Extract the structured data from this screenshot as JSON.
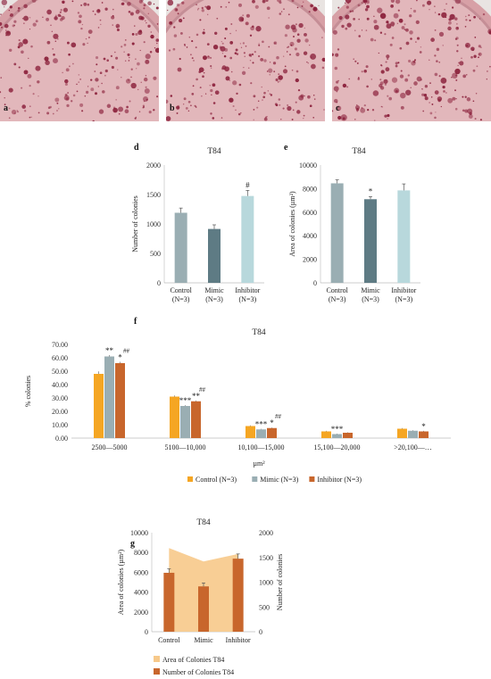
{
  "figure": {
    "photos": [
      {
        "letter": "a"
      },
      {
        "letter": "b"
      },
      {
        "letter": "c"
      }
    ],
    "colors": {
      "control": "#9aaeb3",
      "mimic": "#5e7b84",
      "inhibitor": "#b8d8dc",
      "orange_control": "#f5a623",
      "gray_mimic": "#9aaeb3",
      "brown_inhibitor": "#c8662c",
      "area_fill": "#f7c98a",
      "number_bar": "#c8662c",
      "colony": "#8a1f3a"
    }
  },
  "chart_data": [
    {
      "id": "d",
      "letter": "d",
      "type": "bar",
      "title": "T84",
      "ylabel": "Number of colonies",
      "categories": [
        "Control",
        "Mimic",
        "Inhibitor"
      ],
      "category_sub": [
        "(N=3)",
        "(N=3)",
        "(N=3)"
      ],
      "values": [
        1190,
        915,
        1475
      ],
      "errors": [
        80,
        70,
        95
      ],
      "ylim": [
        0,
        2000
      ],
      "yticks": [
        "0",
        "500",
        "1000",
        "1500",
        "2000"
      ],
      "annotations": [
        "",
        "",
        "#"
      ]
    },
    {
      "id": "e",
      "letter": "e",
      "type": "bar",
      "title": "T84",
      "ylabel": "Area of colonies (µm²)",
      "categories": [
        "Control",
        "Mimic",
        "Inhibitor"
      ],
      "category_sub": [
        "(N=3)",
        "(N=3)",
        "(N=3)"
      ],
      "values": [
        8450,
        7100,
        7850
      ],
      "errors": [
        300,
        220,
        550
      ],
      "ylim": [
        0,
        10000
      ],
      "yticks": [
        "0",
        "2000",
        "4000",
        "6000",
        "8000",
        "10000"
      ],
      "annotations": [
        "",
        "*",
        ""
      ]
    },
    {
      "id": "f",
      "letter": "f",
      "type": "bar",
      "title": "T84",
      "ylabel": "% colonies",
      "xlabel": "µm²",
      "categories": [
        "2500—5000",
        "5100—10,000",
        "10,100—15,000",
        "15,100—20,000",
        ">20,100—…"
      ],
      "series": [
        {
          "name": "Control (N=3)",
          "values": [
            48.0,
            31.0,
            9.0,
            5.0,
            7.0
          ],
          "errors": [
            1.8,
            0.8,
            0.5,
            0.4,
            0.5
          ]
        },
        {
          "name": "Mimic (N=3)",
          "values": [
            61.0,
            24.0,
            6.5,
            3.0,
            5.5
          ],
          "errors": [
            1.0,
            0.6,
            0.4,
            0.3,
            0.4
          ]
        },
        {
          "name": "Inhibitor (N=3)",
          "values": [
            56.0,
            27.5,
            7.5,
            4.0,
            5.0
          ],
          "errors": [
            1.0,
            0.6,
            0.4,
            0.3,
            0.4
          ]
        }
      ],
      "annotations": [
        [
          "",
          "**",
          "*"
        ],
        [
          "",
          "***",
          "**"
        ],
        [
          "",
          "***",
          "*"
        ],
        [
          "",
          "***",
          ""
        ],
        [
          "",
          "",
          "*"
        ]
      ],
      "hash_annotations": [
        [
          "",
          "",
          "##"
        ],
        [
          "",
          "",
          "##"
        ],
        [
          "",
          "",
          "##"
        ],
        [
          "",
          "",
          ""
        ],
        [
          "",
          "",
          ""
        ]
      ],
      "ylim": [
        0,
        70
      ],
      "yticks": [
        "0.00",
        "10.00",
        "20.00",
        "30.00",
        "40.00",
        "50.00",
        "60.00",
        "70.00"
      ],
      "legend_position": "bottom"
    },
    {
      "id": "g",
      "letter": "g",
      "type": "area",
      "title": "T84",
      "ylabel": "Area of colonies (µm²)",
      "ylabel_right": "Number of colonies",
      "categories": [
        "Control",
        "Mimic",
        "Inhibitor"
      ],
      "area_series": {
        "name": "Area of Colonies T84",
        "values": [
          8450,
          7100,
          7850
        ]
      },
      "bar_series": {
        "name": "Number of Colonies T84",
        "values": [
          1190,
          915,
          1475
        ],
        "errors": [
          80,
          70,
          95
        ]
      },
      "ylim": [
        0,
        10000
      ],
      "ylim_right": [
        0,
        2000
      ],
      "yticks": [
        "0",
        "2000",
        "4000",
        "6000",
        "8000",
        "10000"
      ],
      "yticks_right": [
        "0",
        "500",
        "1000",
        "1500",
        "2000"
      ],
      "legend_position": "bottom"
    }
  ]
}
